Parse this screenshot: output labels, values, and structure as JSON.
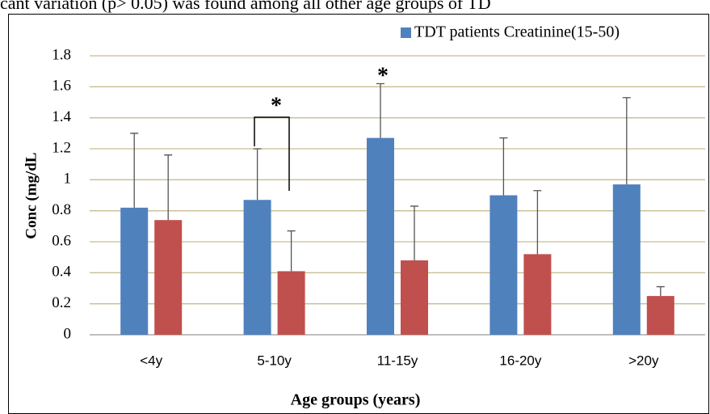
{
  "caption": "cant variation (p> 0.05) was found among all other age groups of TD",
  "chart_data": {
    "type": "bar",
    "categories": [
      "<4y",
      "5-10y",
      "11-15y",
      "16-20y",
      ">20y"
    ],
    "series": [
      {
        "name": "TDT patients Creatinine(15-50)",
        "color": "#4f81bd",
        "values": [
          0.82,
          0.87,
          1.27,
          0.9,
          0.97
        ],
        "errors": [
          0.48,
          0.33,
          0.35,
          0.37,
          0.56
        ]
      },
      {
        "color": "#c0504d",
        "values": [
          0.74,
          0.41,
          0.48,
          0.52,
          0.25
        ],
        "errors": [
          0.42,
          0.26,
          0.35,
          0.41,
          0.06
        ]
      }
    ],
    "ylim": [
      0,
      1.8
    ],
    "yticks": [
      0,
      0.2,
      0.4,
      0.6,
      0.8,
      1,
      1.2,
      1.4,
      1.6,
      1.8
    ],
    "grid": true,
    "y_label": "Conc (mg/dL",
    "x_label": "Age groups (years)",
    "annotations": [
      "*",
      "*"
    ],
    "legend": "top-right"
  }
}
